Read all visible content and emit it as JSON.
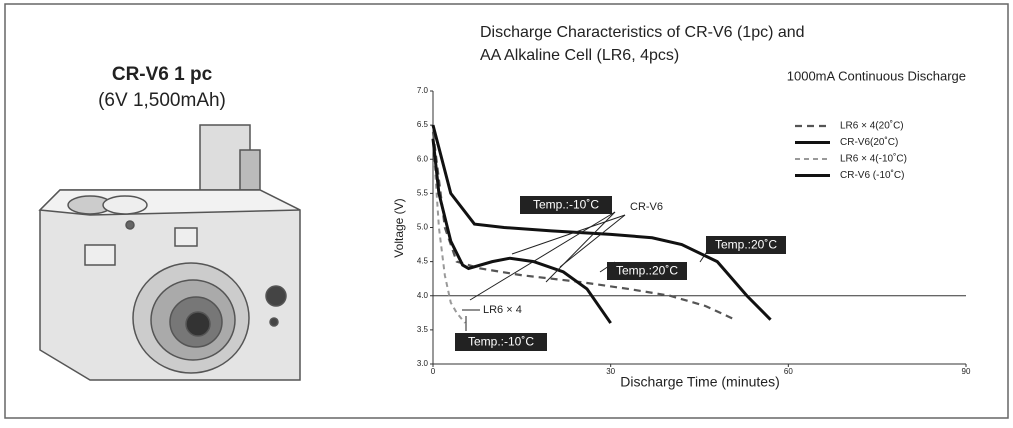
{
  "product": {
    "name": "CR-V6 1 pc",
    "spec": "(6V 1,500mAh)"
  },
  "chart_data": {
    "type": "line",
    "title": [
      "Discharge Characteristics of CR-V6 (1pc) and",
      "AA Alkaline Cell (LR6, 4pcs)"
    ],
    "subtitle": "1000mA Continuous Discharge",
    "x_label": "Discharge Time (minutes)",
    "y_label": "Voltage (V)",
    "xlim": [
      0,
      90
    ],
    "xticks": [
      0,
      30,
      60,
      90
    ],
    "ylim": [
      3,
      7
    ],
    "yticks": [
      {
        "value": 3,
        "label": "3.0"
      },
      3.5,
      {
        "value": 4,
        "label": "4.0"
      },
      4.5,
      {
        "value": 5,
        "label": "5.0"
      },
      5.5,
      {
        "value": 6,
        "label": "6.0"
      },
      6.5,
      {
        "value": 7,
        "label": "7.0"
      }
    ],
    "hline": 4,
    "legend": "top-right",
    "series": [
      {
        "name": "LR6 × 4(20˚C)",
        "color": "#555555",
        "dash": "7,5",
        "width": 2.2,
        "x": [
          0,
          2,
          4,
          8,
          15,
          25,
          33,
          40,
          46,
          51
        ],
        "values": [
          6.4,
          5.0,
          4.5,
          4.4,
          4.3,
          4.2,
          4.1,
          4.0,
          3.85,
          3.65
        ]
      },
      {
        "name": "CR-V6(20˚C)",
        "color": "#111111",
        "dash": "none",
        "width": 3,
        "x": [
          0,
          3,
          7,
          12,
          20,
          30,
          37,
          42,
          48,
          53,
          57
        ],
        "values": [
          6.5,
          5.5,
          5.05,
          5.0,
          4.95,
          4.9,
          4.85,
          4.75,
          4.5,
          4.0,
          3.65
        ]
      },
      {
        "name": "LR6 × 4(-10˚C)",
        "color": "#999999",
        "dash": "5,4",
        "width": 2,
        "x": [
          0,
          1,
          2,
          3,
          4,
          5.4
        ],
        "values": [
          6.3,
          5.0,
          4.3,
          3.9,
          3.75,
          3.6
        ]
      },
      {
        "name": "CR-V6 (-10˚C)",
        "color": "#111111",
        "dash": "none",
        "width": 3,
        "x": [
          0,
          1,
          3,
          5,
          6,
          10,
          13,
          17,
          22,
          26,
          30
        ],
        "values": [
          6.3,
          5.5,
          4.8,
          4.45,
          4.4,
          4.5,
          4.55,
          4.5,
          4.35,
          4.1,
          3.6
        ]
      }
    ],
    "annotations": [
      "Temp.:-10˚C",
      "Temp.:20˚C",
      "Temp.:20˚C",
      "Temp.:-10˚C",
      "CR-V6",
      "LR6 × 4"
    ]
  }
}
